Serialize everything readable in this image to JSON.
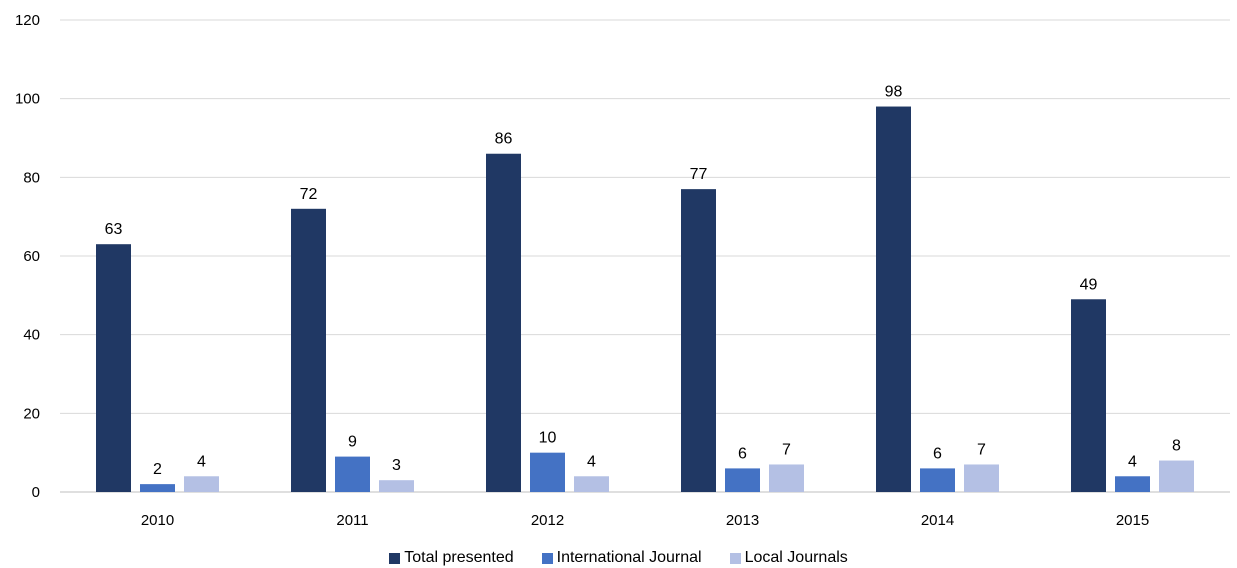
{
  "chart_data": {
    "type": "bar",
    "categories": [
      "2010",
      "2011",
      "2012",
      "2013",
      "2014",
      "2015"
    ],
    "series": [
      {
        "name": "Total presented",
        "values": [
          63,
          72,
          86,
          77,
          98,
          49
        ],
        "color": "#203864"
      },
      {
        "name": "International Journal",
        "values": [
          2,
          9,
          10,
          6,
          6,
          4
        ],
        "color": "#4472c4"
      },
      {
        "name": "Local Journals",
        "values": [
          4,
          3,
          4,
          7,
          7,
          8
        ],
        "color": "#b4c0e4"
      }
    ],
    "ylim": [
      0,
      120
    ],
    "yticks": [
      0,
      20,
      40,
      60,
      80,
      100,
      120
    ],
    "grid": true,
    "legend": "bottom",
    "data_labels": true
  }
}
